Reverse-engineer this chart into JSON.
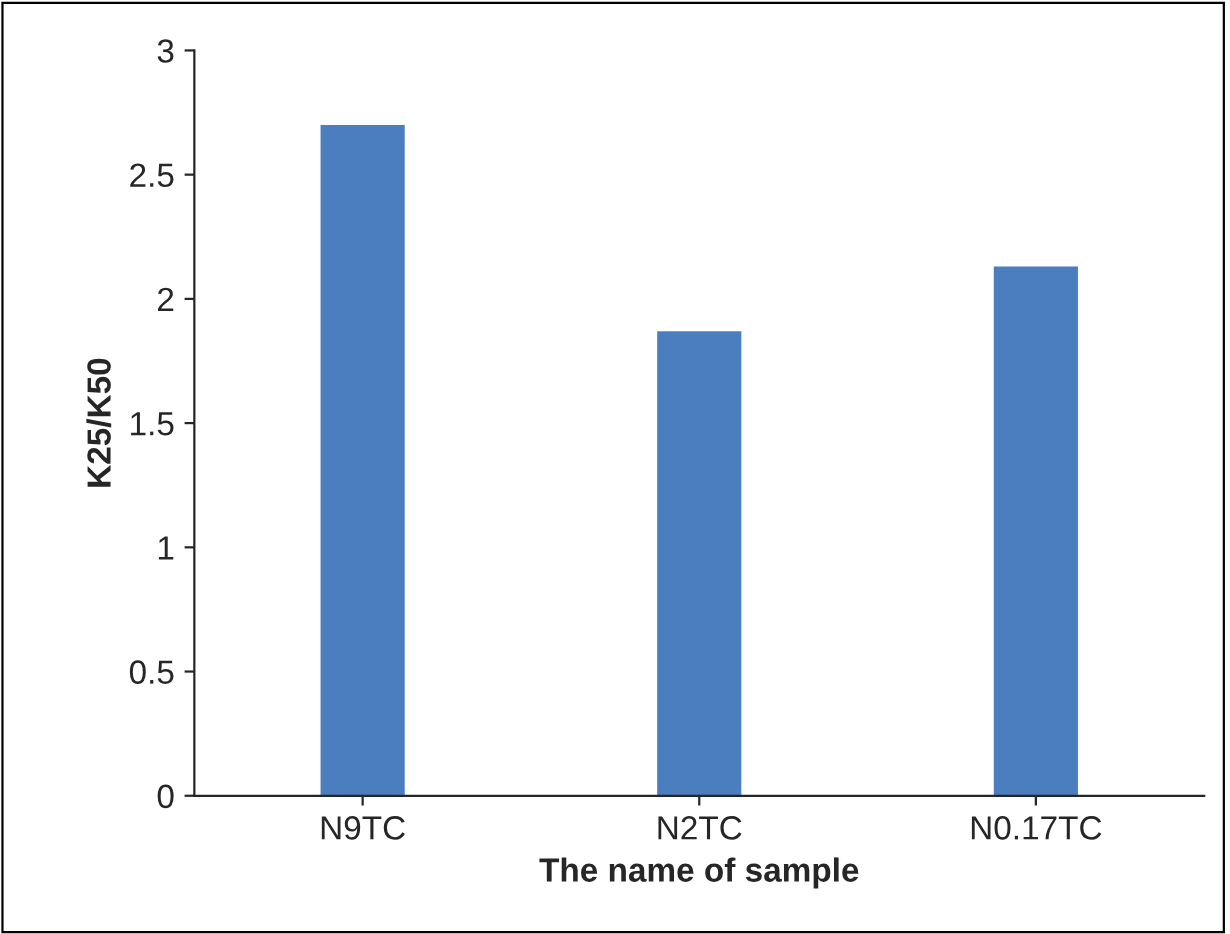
{
  "chart_data": {
    "type": "bar",
    "xlabel": "The name of sample",
    "ylabel": "K25/K50",
    "categories": [
      "N9TC",
      "N2TC",
      "N0.17TC"
    ],
    "values": [
      2.7,
      1.87,
      2.13
    ],
    "color": "#4a7ebf",
    "ylim": [
      0,
      3
    ],
    "yticks": [
      0,
      0.5,
      1,
      1.5,
      2,
      2.5,
      3
    ],
    "grid": false,
    "legend": false
  }
}
